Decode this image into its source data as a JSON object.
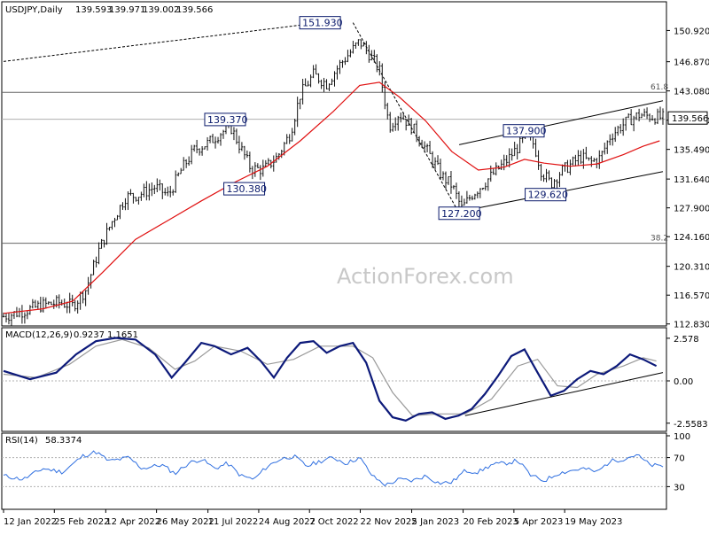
{
  "chart_data": {
    "type": "candlestick",
    "price_pane": {
      "title": "USDJPY,Daily",
      "ohlc": [
        "139.593",
        "139.971",
        "139.002",
        "139.566"
      ],
      "current_price": "139.566",
      "y_ticks": [
        "150.920",
        "146.870",
        "143.080",
        "139.290",
        "135.490",
        "131.640",
        "127.900",
        "124.160",
        "120.310",
        "116.570",
        "112.830"
      ],
      "y_tick_values": [
        150.92,
        146.87,
        143.08,
        139.29,
        135.49,
        131.64,
        127.9,
        124.16,
        120.31,
        116.57,
        112.83
      ],
      "ylim": [
        112.8,
        153.5
      ],
      "fib_levels": [
        {
          "label": "61.8",
          "value": 142.9
        },
        {
          "label": "38.2",
          "value": 123.3
        }
      ],
      "reference_line": 139.4,
      "callouts": [
        {
          "label": "151.930",
          "x": 0.48,
          "value": 151.93
        },
        {
          "label": "139.370",
          "x": 0.336,
          "value": 139.37
        },
        {
          "label": "130.380",
          "x": 0.365,
          "value": 130.38
        },
        {
          "label": "137.900",
          "x": 0.789,
          "value": 137.9
        },
        {
          "label": "127.200",
          "x": 0.691,
          "value": 127.2
        },
        {
          "label": "129.620",
          "x": 0.822,
          "value": 129.62
        }
      ],
      "close_points": [
        [
          0.0,
          113.8
        ],
        [
          0.03,
          114.5
        ],
        [
          0.06,
          115.3
        ],
        [
          0.085,
          115.6
        ],
        [
          0.105,
          115.2
        ],
        [
          0.125,
          117.3
        ],
        [
          0.145,
          122.5
        ],
        [
          0.165,
          126.2
        ],
        [
          0.185,
          129.3
        ],
        [
          0.205,
          129.6
        ],
        [
          0.23,
          130.6
        ],
        [
          0.25,
          129.5
        ],
        [
          0.27,
          132.9
        ],
        [
          0.29,
          135.5
        ],
        [
          0.31,
          136.3
        ],
        [
          0.33,
          137.7
        ],
        [
          0.345,
          138.3
        ],
        [
          0.36,
          135.6
        ],
        [
          0.375,
          133.0
        ],
        [
          0.395,
          132.9
        ],
        [
          0.415,
          134.5
        ],
        [
          0.435,
          137.6
        ],
        [
          0.45,
          142.6
        ],
        [
          0.47,
          145.2
        ],
        [
          0.49,
          144.0
        ],
        [
          0.51,
          146.5
        ],
        [
          0.525,
          148.0
        ],
        [
          0.54,
          149.5
        ],
        [
          0.555,
          147.8
        ],
        [
          0.57,
          145.8
        ],
        [
          0.585,
          138.5
        ],
        [
          0.6,
          140.2
        ],
        [
          0.62,
          138.3
        ],
        [
          0.635,
          136.3
        ],
        [
          0.65,
          134.2
        ],
        [
          0.665,
          132.0
        ],
        [
          0.68,
          130.8
        ],
        [
          0.695,
          127.8
        ],
        [
          0.71,
          129.6
        ],
        [
          0.725,
          130.8
        ],
        [
          0.745,
          132.5
        ],
        [
          0.765,
          134.2
        ],
        [
          0.78,
          135.8
        ],
        [
          0.795,
          137.4
        ],
        [
          0.805,
          136.0
        ],
        [
          0.815,
          132.8
        ],
        [
          0.83,
          131.0
        ],
        [
          0.845,
          132.6
        ],
        [
          0.86,
          133.5
        ],
        [
          0.875,
          134.5
        ],
        [
          0.89,
          133.8
        ],
        [
          0.905,
          134.4
        ],
        [
          0.92,
          137.2
        ],
        [
          0.935,
          138.4
        ],
        [
          0.95,
          139.4
        ],
        [
          0.965,
          140.0
        ],
        [
          0.98,
          139.8
        ],
        [
          0.995,
          139.6
        ]
      ],
      "ma_points": [
        [
          0.0,
          114.2
        ],
        [
          0.06,
          114.8
        ],
        [
          0.105,
          115.8
        ],
        [
          0.15,
          119.5
        ],
        [
          0.2,
          123.8
        ],
        [
          0.25,
          126.3
        ],
        [
          0.3,
          128.8
        ],
        [
          0.35,
          131.2
        ],
        [
          0.4,
          133.3
        ],
        [
          0.45,
          136.6
        ],
        [
          0.5,
          140.4
        ],
        [
          0.54,
          143.8
        ],
        [
          0.57,
          144.2
        ],
        [
          0.6,
          142.3
        ],
        [
          0.64,
          139.2
        ],
        [
          0.68,
          135.2
        ],
        [
          0.72,
          132.8
        ],
        [
          0.76,
          133.2
        ],
        [
          0.79,
          134.2
        ],
        [
          0.82,
          133.7
        ],
        [
          0.86,
          133.3
        ],
        [
          0.9,
          133.6
        ],
        [
          0.94,
          134.8
        ],
        [
          0.97,
          135.9
        ],
        [
          0.995,
          136.6
        ]
      ],
      "trendlines": [
        {
          "points": [
            [
              0.0,
              146.9
            ],
            [
              0.48,
              151.93
            ]
          ],
          "dashed": true
        },
        {
          "points": [
            [
              0.53,
              151.93
            ],
            [
              0.691,
              127.2
            ]
          ],
          "dashed": true
        },
        {
          "points": [
            [
              0.691,
              136.1
            ],
            [
              1.0,
              141.8
            ]
          ],
          "dashed": false
        },
        {
          "points": [
            [
              0.691,
              127.4
            ],
            [
              1.0,
              132.6
            ]
          ],
          "dashed": false
        }
      ]
    },
    "macd_pane": {
      "title": "MACD(12,26,9)",
      "values_text": [
        "0.9237",
        "1.1651"
      ],
      "y_ticks": [
        "2.578",
        "0.00",
        "-2.5583"
      ],
      "y_tick_values": [
        2.578,
        0.0,
        -2.5583
      ],
      "ylim": [
        -3.0,
        3.0
      ],
      "macd_points": [
        [
          0.0,
          0.6
        ],
        [
          0.04,
          0.1
        ],
        [
          0.08,
          0.5
        ],
        [
          0.11,
          1.6
        ],
        [
          0.14,
          2.4
        ],
        [
          0.17,
          2.6
        ],
        [
          0.2,
          2.5
        ],
        [
          0.23,
          1.6
        ],
        [
          0.255,
          0.2
        ],
        [
          0.275,
          1.1
        ],
        [
          0.3,
          2.3
        ],
        [
          0.32,
          2.1
        ],
        [
          0.345,
          1.6
        ],
        [
          0.37,
          2.0
        ],
        [
          0.39,
          1.2
        ],
        [
          0.41,
          0.2
        ],
        [
          0.43,
          1.4
        ],
        [
          0.45,
          2.3
        ],
        [
          0.47,
          2.4
        ],
        [
          0.49,
          1.7
        ],
        [
          0.51,
          2.1
        ],
        [
          0.53,
          2.3
        ],
        [
          0.55,
          1.1
        ],
        [
          0.57,
          -1.2
        ],
        [
          0.59,
          -2.2
        ],
        [
          0.61,
          -2.4
        ],
        [
          0.63,
          -2.0
        ],
        [
          0.65,
          -1.9
        ],
        [
          0.67,
          -2.3
        ],
        [
          0.69,
          -2.1
        ],
        [
          0.71,
          -1.7
        ],
        [
          0.73,
          -0.8
        ],
        [
          0.75,
          0.3
        ],
        [
          0.77,
          1.5
        ],
        [
          0.79,
          1.9
        ],
        [
          0.81,
          0.5
        ],
        [
          0.83,
          -0.9
        ],
        [
          0.85,
          -0.6
        ],
        [
          0.87,
          0.1
        ],
        [
          0.89,
          0.6
        ],
        [
          0.91,
          0.4
        ],
        [
          0.93,
          0.9
        ],
        [
          0.95,
          1.6
        ],
        [
          0.97,
          1.3
        ],
        [
          0.99,
          0.9
        ]
      ],
      "signal_points": [
        [
          0.0,
          0.4
        ],
        [
          0.05,
          0.2
        ],
        [
          0.1,
          1.0
        ],
        [
          0.14,
          2.1
        ],
        [
          0.18,
          2.5
        ],
        [
          0.22,
          2.0
        ],
        [
          0.26,
          0.7
        ],
        [
          0.29,
          1.2
        ],
        [
          0.32,
          2.1
        ],
        [
          0.36,
          1.8
        ],
        [
          0.4,
          1.0
        ],
        [
          0.44,
          1.3
        ],
        [
          0.48,
          2.1
        ],
        [
          0.53,
          2.1
        ],
        [
          0.56,
          1.4
        ],
        [
          0.59,
          -0.7
        ],
        [
          0.62,
          -2.1
        ],
        [
          0.66,
          -2.0
        ],
        [
          0.7,
          -2.0
        ],
        [
          0.74,
          -1.1
        ],
        [
          0.78,
          0.9
        ],
        [
          0.81,
          1.3
        ],
        [
          0.84,
          -0.3
        ],
        [
          0.87,
          -0.4
        ],
        [
          0.9,
          0.4
        ],
        [
          0.94,
          0.9
        ],
        [
          0.97,
          1.4
        ],
        [
          0.99,
          1.2
        ]
      ],
      "trendline": [
        [
          0.7,
          -2.1
        ],
        [
          1.0,
          0.5
        ]
      ]
    },
    "rsi_pane": {
      "title": "RSI(14)",
      "value_text": "58.3374",
      "y_ticks": [
        "100",
        "70",
        "30",
        "0"
      ],
      "y_tick_values": [
        100,
        70,
        30,
        0
      ],
      "ylim": [
        0,
        100
      ],
      "levels": [
        70,
        30
      ],
      "rsi_points": [
        [
          0.0,
          45
        ],
        [
          0.03,
          40
        ],
        [
          0.06,
          55
        ],
        [
          0.09,
          50
        ],
        [
          0.12,
          72
        ],
        [
          0.14,
          78
        ],
        [
          0.16,
          65
        ],
        [
          0.19,
          70
        ],
        [
          0.21,
          55
        ],
        [
          0.24,
          60
        ],
        [
          0.26,
          48
        ],
        [
          0.28,
          62
        ],
        [
          0.3,
          68
        ],
        [
          0.32,
          55
        ],
        [
          0.34,
          62
        ],
        [
          0.36,
          45
        ],
        [
          0.38,
          40
        ],
        [
          0.4,
          58
        ],
        [
          0.42,
          68
        ],
        [
          0.44,
          72
        ],
        [
          0.46,
          58
        ],
        [
          0.48,
          65
        ],
        [
          0.5,
          70
        ],
        [
          0.52,
          62
        ],
        [
          0.54,
          70
        ],
        [
          0.56,
          44
        ],
        [
          0.58,
          32
        ],
        [
          0.6,
          40
        ],
        [
          0.62,
          38
        ],
        [
          0.64,
          45
        ],
        [
          0.66,
          35
        ],
        [
          0.68,
          36
        ],
        [
          0.7,
          52
        ],
        [
          0.72,
          50
        ],
        [
          0.74,
          60
        ],
        [
          0.76,
          62
        ],
        [
          0.78,
          66
        ],
        [
          0.8,
          45
        ],
        [
          0.82,
          38
        ],
        [
          0.84,
          48
        ],
        [
          0.86,
          52
        ],
        [
          0.88,
          55
        ],
        [
          0.9,
          50
        ],
        [
          0.92,
          65
        ],
        [
          0.94,
          68
        ],
        [
          0.96,
          74
        ],
        [
          0.98,
          60
        ],
        [
          0.995,
          58
        ]
      ]
    },
    "x_ticks": [
      "12 Jan 2022",
      "25 Feb 2022",
      "12 Apr 2022",
      "26 May 2022",
      "11 Jul 2022",
      "24 Aug 2022",
      "7 Oct 2022",
      "22 Nov 2022",
      "5 Jan 2023",
      "20 Feb 2023",
      "5 Apr 2023",
      "19 May 2023"
    ],
    "x_tick_positions": [
      0.0,
      0.077,
      0.155,
      0.232,
      0.31,
      0.387,
      0.464,
      0.541,
      0.619,
      0.697,
      0.774,
      0.851
    ]
  },
  "watermark": "ActionForex.com",
  "colors": {
    "candles": "#111111",
    "ma": "#e01010",
    "macd": "#0d1a7a",
    "signal": "#9a9a9a",
    "rsi": "#2f6fe0",
    "callout_border": "#0a1a6b",
    "grid": "#b0b0b0"
  }
}
